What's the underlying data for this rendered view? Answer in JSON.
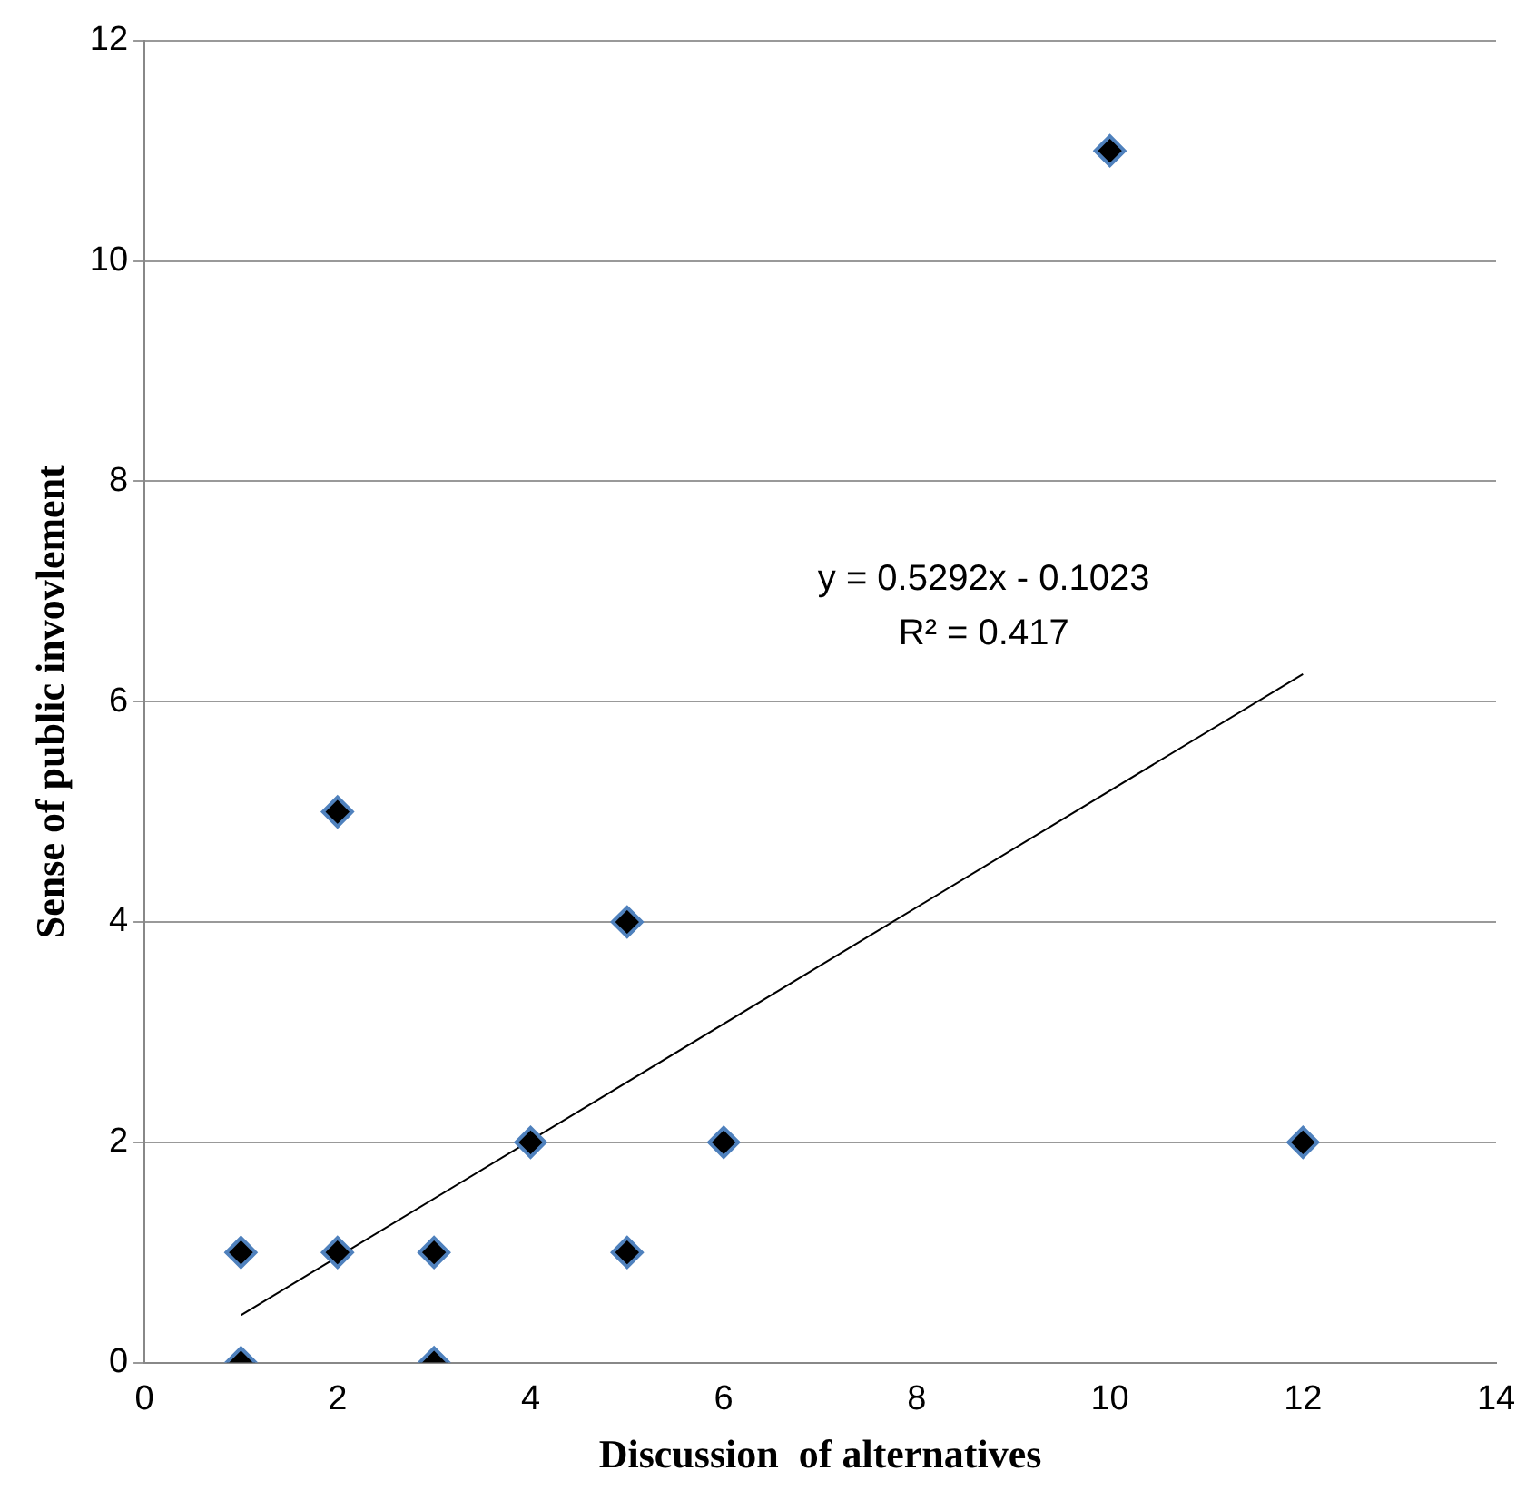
{
  "chart_data": {
    "type": "scatter",
    "xlabel": "Discussion  of alternatives",
    "ylabel": "Sense of public invovlement",
    "xlim": [
      0,
      14
    ],
    "xticks": [
      0,
      2,
      4,
      6,
      8,
      10,
      12,
      14
    ],
    "ylim": [
      0,
      12
    ],
    "yticks": [
      0,
      2,
      4,
      6,
      8,
      10,
      12
    ],
    "grid": "y",
    "legend": false,
    "series": [
      {
        "type": "scatter",
        "color": "#000000",
        "marker": "diamond",
        "x": [
          1,
          1,
          2,
          2,
          3,
          3,
          4,
          5,
          5,
          6,
          10,
          12
        ],
        "values": [
          1,
          0,
          5,
          1,
          1,
          0,
          2,
          4,
          1,
          2,
          11,
          2
        ]
      },
      {
        "type": "line",
        "color": "#000000",
        "marker": "none",
        "line_style": "solid",
        "x": [
          1,
          12
        ],
        "values": [
          0.43,
          6.25
        ]
      }
    ],
    "annotations": [
      "y = 0.5292x - 0.1023",
      "R² = 0.417"
    ]
  }
}
